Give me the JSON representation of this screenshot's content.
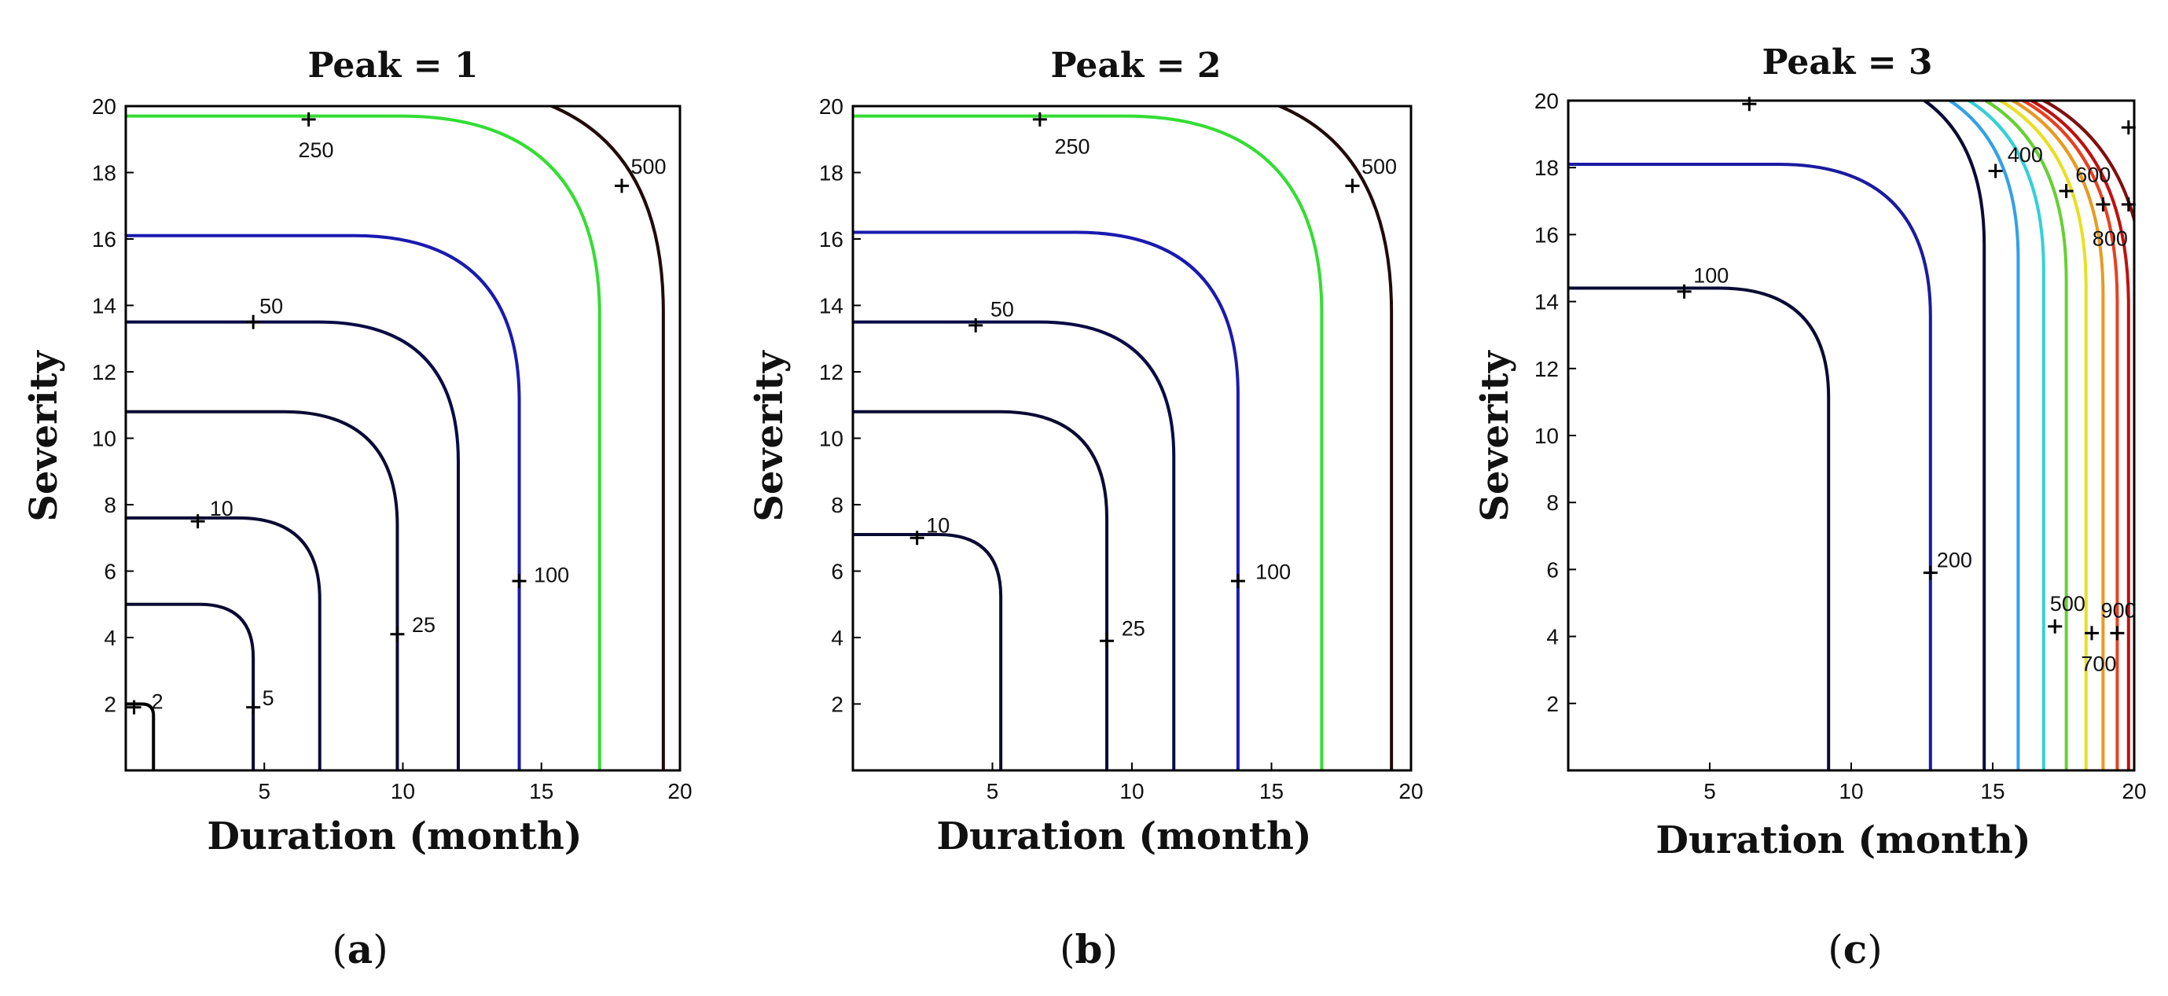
{
  "chart_data": [
    {
      "type": "contour",
      "panel": "(a)",
      "caption_letter": "a",
      "title": "Peak = 1",
      "xlabel": "Duration (month)",
      "ylabel": "Severity",
      "xlim": [
        0,
        20
      ],
      "ylim": [
        0,
        20
      ],
      "xticks": [
        5,
        10,
        15,
        20
      ],
      "yticks": [
        2,
        4,
        6,
        8,
        10,
        12,
        14,
        16,
        18,
        20
      ],
      "contours": [
        {
          "level": "2",
          "color": "#000000",
          "x_end": 1.0,
          "y_end": 2.0,
          "label_x": 0.3,
          "label_y": 1.9,
          "text_dx": 0.4,
          "text_dy": 0.2
        },
        {
          "level": "5",
          "color": "#0a0a33",
          "x_end": 4.6,
          "y_end": 5.0,
          "label_x": 4.6,
          "label_y": 1.9,
          "text_dx": 0.1,
          "text_dy": 0.3
        },
        {
          "level": "10",
          "color": "#0a0a33",
          "x_end": 7.0,
          "y_end": 7.6,
          "label_x": 2.6,
          "label_y": 7.5,
          "text_dx": 0.2,
          "text_dy": 0.4
        },
        {
          "level": "25",
          "color": "#0a0a33",
          "x_end": 9.8,
          "y_end": 10.8,
          "label_x": 9.8,
          "label_y": 4.1,
          "text_dx": 0.3,
          "text_dy": 0.3
        },
        {
          "level": "50",
          "color": "#0a0a44",
          "x_end": 12.0,
          "y_end": 13.5,
          "label_x": 4.6,
          "label_y": 13.5,
          "text_dx": 0.0,
          "text_dy": 0.5
        },
        {
          "level": "100",
          "color": "#1a1ab0",
          "x_end": 14.2,
          "y_end": 16.1,
          "label_x": 14.2,
          "label_y": 5.7,
          "text_dx": 0.3,
          "text_dy": 0.2
        },
        {
          "level": "250",
          "color": "#33dd33",
          "x_end": 17.1,
          "y_end": 19.7,
          "label_x": 6.6,
          "label_y": 19.6,
          "text_dx": -0.6,
          "text_dy": -0.9
        },
        {
          "level": "500",
          "color": "#200a0a",
          "x_end": 19.4,
          "y_end": 20.6,
          "label_x": 17.9,
          "label_y": 17.6,
          "text_dx": 0.1,
          "text_dy": 0.6
        }
      ]
    },
    {
      "type": "contour",
      "panel": "(b)",
      "caption_letter": "b",
      "title": "Peak = 2",
      "xlabel": "Duration (month)",
      "ylabel": "Severity",
      "xlim": [
        0,
        20
      ],
      "ylim": [
        0,
        20
      ],
      "xticks": [
        5,
        10,
        15,
        20
      ],
      "yticks": [
        2,
        4,
        6,
        8,
        10,
        12,
        14,
        16,
        18,
        20
      ],
      "contours": [
        {
          "level": "10",
          "color": "#0a0a33",
          "x_end": 5.3,
          "y_end": 7.1,
          "label_x": 2.3,
          "label_y": 7.0,
          "text_dx": 0.1,
          "text_dy": 0.4
        },
        {
          "level": "25",
          "color": "#0a0a33",
          "x_end": 9.1,
          "y_end": 10.8,
          "label_x": 9.1,
          "label_y": 3.9,
          "text_dx": 0.3,
          "text_dy": 0.4
        },
        {
          "level": "50",
          "color": "#0a0a44",
          "x_end": 11.5,
          "y_end": 13.5,
          "label_x": 4.4,
          "label_y": 13.4,
          "text_dx": 0.3,
          "text_dy": 0.5
        },
        {
          "level": "100",
          "color": "#1a1ab0",
          "x_end": 13.8,
          "y_end": 16.2,
          "label_x": 13.8,
          "label_y": 5.7,
          "text_dx": 0.4,
          "text_dy": 0.3
        },
        {
          "level": "250",
          "color": "#33dd33",
          "x_end": 16.8,
          "y_end": 19.7,
          "label_x": 6.7,
          "label_y": 19.6,
          "text_dx": 0.3,
          "text_dy": -0.8
        },
        {
          "level": "500",
          "color": "#200a0a",
          "x_end": 19.3,
          "y_end": 20.6,
          "label_x": 17.9,
          "label_y": 17.6,
          "text_dx": 0.1,
          "text_dy": 0.6
        }
      ]
    },
    {
      "type": "contour",
      "panel": "(c)",
      "caption_letter": "c",
      "title": "Peak = 3",
      "xlabel": "Duration (month)",
      "ylabel": "Severity",
      "xlim": [
        0,
        20
      ],
      "ylim": [
        0,
        20
      ],
      "xticks": [
        5,
        10,
        15,
        20
      ],
      "yticks": [
        2,
        4,
        6,
        8,
        10,
        12,
        14,
        16,
        18,
        20
      ],
      "contours": [
        {
          "level": "100",
          "color": "#0a0a33",
          "x_end": 9.2,
          "y_end": 14.4,
          "label_x": 4.1,
          "label_y": 14.3,
          "text_dx": 0.1,
          "text_dy": 0.5
        },
        {
          "level": "200",
          "color": "#1a1aa0",
          "x_end": 12.8,
          "y_end": 18.1,
          "label_x": 12.8,
          "label_y": 5.9,
          "text_dx": 0.0,
          "text_dy": 0.4
        },
        {
          "level": "",
          "color": "#0a0a33",
          "x_end": 14.7,
          "y_end": 20.9,
          "label_x": 6.4,
          "label_y": 19.9,
          "text_dx": 0,
          "text_dy": 0
        },
        {
          "level": "400",
          "color": "#33a0e8",
          "x_end": 15.9,
          "y_end": 20.9,
          "label_x": 15.1,
          "label_y": 17.9,
          "text_dx": 0.2,
          "text_dy": 0.5
        },
        {
          "level": "500",
          "color": "#33d0d8",
          "x_end": 16.8,
          "y_end": 20.9,
          "label_x": 17.2,
          "label_y": 4.3,
          "text_dx": -0.4,
          "text_dy": 0.7
        },
        {
          "level": "600",
          "color": "#66d033",
          "x_end": 17.6,
          "y_end": 20.9,
          "label_x": 17.6,
          "label_y": 17.3,
          "text_dx": 0.1,
          "text_dy": 0.5
        },
        {
          "level": "700",
          "color": "#e8e020",
          "x_end": 18.3,
          "y_end": 20.9,
          "label_x": 18.5,
          "label_y": 4.1,
          "text_dx": -0.6,
          "text_dy": -0.9
        },
        {
          "level": "800",
          "color": "#e89a20",
          "x_end": 18.9,
          "y_end": 20.9,
          "label_x": 18.9,
          "label_y": 16.9,
          "text_dx": -0.6,
          "text_dy": -1.0
        },
        {
          "level": "900",
          "color": "#e84020",
          "x_end": 19.4,
          "y_end": 20.9,
          "label_x": 19.4,
          "label_y": 4.1,
          "text_dx": -0.8,
          "text_dy": 0.7
        },
        {
          "level": "",
          "color": "#c01010",
          "x_end": 19.8,
          "y_end": 20.9,
          "label_x": 19.8,
          "label_y": 16.9,
          "text_dx": 0,
          "text_dy": 0
        },
        {
          "level": "",
          "color": "#801010",
          "x_end": 20.4,
          "y_end": 20.9,
          "label_x": 19.8,
          "label_y": 19.2,
          "text_dx": 0,
          "text_dy": 0
        }
      ]
    }
  ]
}
